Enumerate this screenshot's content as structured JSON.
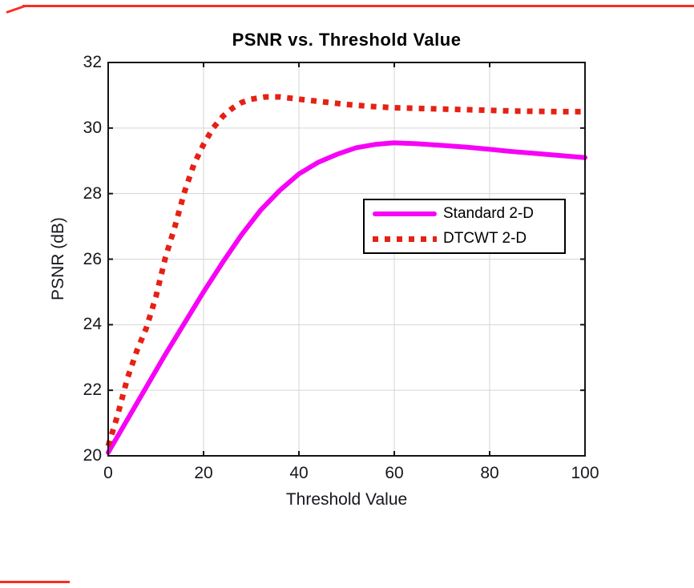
{
  "figure": {
    "title": "PSNR vs. Threshold Value",
    "xlabel": "Threshold Value",
    "ylabel": "PSNR (dB)"
  },
  "axis": {
    "xtick_labels": [
      "0",
      "20",
      "40",
      "60",
      "80",
      "100"
    ],
    "ytick_labels": [
      "20",
      "22",
      "24",
      "26",
      "28",
      "30",
      "32"
    ]
  },
  "legend": {
    "items": [
      {
        "label": "Standard 2-D",
        "line_style": "solid",
        "color": "#f602f6"
      },
      {
        "label": "DTCWT 2-D",
        "line_style": "dotted",
        "color": "#e62114"
      }
    ]
  },
  "colors": {
    "standard_line": "#f602f6",
    "dtcwt_line": "#e62114",
    "axes_border": "#141414",
    "grid": "#d5d5d5",
    "text": "#16161d",
    "annotation_red": "#fb2c23"
  },
  "chart_data": {
    "type": "line",
    "title": "PSNR vs. Threshold Value",
    "xlabel": "Threshold Value",
    "ylabel": "PSNR (dB)",
    "xlim": [
      0,
      100
    ],
    "ylim": [
      20,
      32
    ],
    "xticks": [
      0,
      20,
      40,
      60,
      80,
      100
    ],
    "yticks": [
      20,
      22,
      24,
      26,
      28,
      30,
      32
    ],
    "grid": true,
    "legend_position": "inside-right-center",
    "series": [
      {
        "name": "Standard 2-D",
        "color": "#f602f6",
        "line_style": "solid",
        "line_width": 6,
        "x": [
          0,
          4,
          8,
          12,
          16,
          20,
          24,
          28,
          32,
          36,
          40,
          44,
          48,
          52,
          56,
          60,
          65,
          70,
          75,
          80,
          85,
          90,
          95,
          100
        ],
        "y": [
          20.1,
          21.1,
          22.1,
          23.1,
          24.05,
          25.0,
          25.9,
          26.75,
          27.5,
          28.1,
          28.6,
          28.95,
          29.2,
          29.4,
          29.5,
          29.55,
          29.52,
          29.47,
          29.42,
          29.35,
          29.28,
          29.22,
          29.16,
          29.1
        ]
      },
      {
        "name": "DTCWT 2-D",
        "color": "#e62114",
        "line_style": "dotted",
        "line_width": 7,
        "x": [
          0,
          2,
          4,
          6,
          8,
          10,
          12,
          14,
          16,
          18,
          20,
          22,
          24,
          26,
          28,
          30,
          33,
          36,
          40,
          45,
          50,
          55,
          60,
          65,
          70,
          75,
          80,
          85,
          90,
          95,
          100
        ],
        "y": [
          20.3,
          21.25,
          22.35,
          23.2,
          23.9,
          24.85,
          26.05,
          27.0,
          28.05,
          28.9,
          29.5,
          30.0,
          30.35,
          30.6,
          30.78,
          30.88,
          30.95,
          30.95,
          30.88,
          30.8,
          30.72,
          30.66,
          30.62,
          30.6,
          30.58,
          30.56,
          30.54,
          30.52,
          30.51,
          30.5,
          30.5
        ]
      }
    ]
  }
}
